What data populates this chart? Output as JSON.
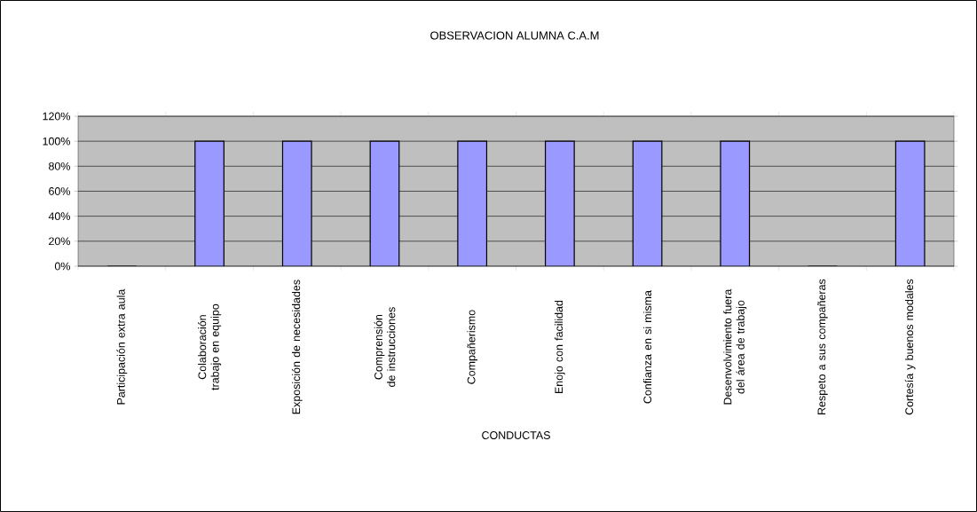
{
  "chart_data": {
    "type": "bar",
    "title": "OBSERVACION ALUMNA C.A.M",
    "xlabel": "CONDUCTAS",
    "categories": [
      "Participación extra aula",
      "Colaboración trabajo en equipo",
      "Exposición de necesidades",
      "Comprensión de instrucciones",
      "Compañerismo",
      "Enojo con facilidad",
      "Confianza en si misma",
      "Desenvolvimiento fuera del área de trabajo",
      "Respeto a sus compañeras",
      "Cortesía y buenos modales"
    ],
    "values": [
      0,
      100,
      100,
      100,
      100,
      100,
      100,
      100,
      0,
      100
    ],
    "color": "#9999ff",
    "ylim": [
      0,
      120
    ],
    "yticks": [
      {
        "value": 0,
        "label": "0%"
      },
      {
        "value": 20,
        "label": "20%"
      },
      {
        "value": 40,
        "label": "40%"
      },
      {
        "value": 60,
        "label": "60%"
      },
      {
        "value": 80,
        "label": "80%"
      },
      {
        "value": 100,
        "label": "100%"
      },
      {
        "value": 120,
        "label": "120%"
      }
    ],
    "grid": "y"
  }
}
